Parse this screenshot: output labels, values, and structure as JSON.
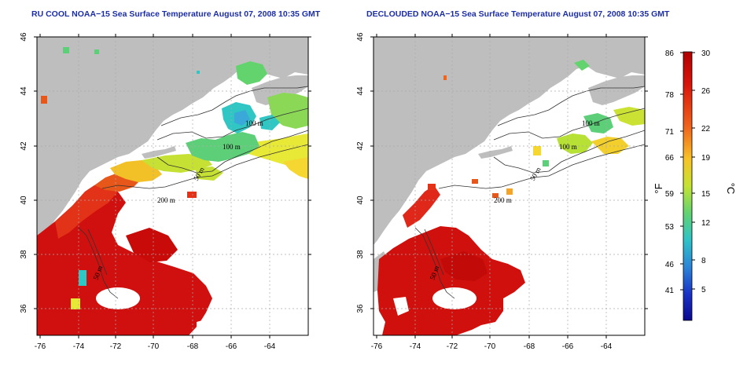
{
  "panels": [
    {
      "title": "RU COOL NOAA−15 Sea Surface Temperature August 07, 2008 10:35 GMT"
    },
    {
      "title": "DECLOUDED NOAA−15 Sea Surface Temperature August 07, 2008 10:35 GMT"
    }
  ],
  "map": {
    "lon_ticks": [
      "-76",
      "-74",
      "-72",
      "-70",
      "-68",
      "-66",
      "-64"
    ],
    "lat_ticks": [
      "46",
      "44",
      "42",
      "40",
      "38",
      "36"
    ],
    "contours": [
      "100 m",
      "100 m",
      "50 m",
      "200 m"
    ],
    "contours_right": [
      "100 m",
      "100 m",
      "50 m",
      "200 m",
      "50 m"
    ],
    "left_extra": "50 m",
    "land_color": "#bebebe"
  },
  "colorbar": {
    "fahrenheit": [
      "86",
      "78",
      "71",
      "66",
      "59",
      "53",
      "46",
      "41"
    ],
    "celsius": [
      "30",
      "26",
      "22",
      "19",
      "15",
      "12",
      "8",
      "5"
    ],
    "unit_f": "°F",
    "unit_c": "°C",
    "colors": [
      "#c80000",
      "#e83015",
      "#f5781e",
      "#f7c825",
      "#b9e336",
      "#5fd470",
      "#2fc7c7",
      "#2a8ad9",
      "#1b35c8",
      "#0d0aa0"
    ]
  }
}
